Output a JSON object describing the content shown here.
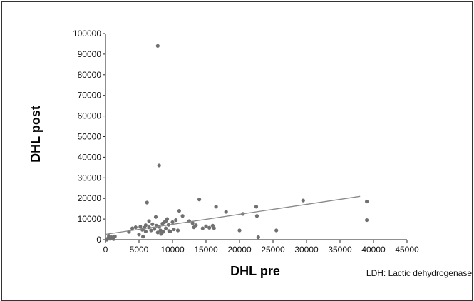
{
  "chart_data": {
    "type": "scatter",
    "xlabel": "DHL pre",
    "ylabel": "DHL post",
    "footnote": "LDH: Lactic dehydrogenase",
    "xlim": [
      0,
      45000
    ],
    "ylim": [
      0,
      100000
    ],
    "xticks": [
      0,
      5000,
      10000,
      15000,
      20000,
      25000,
      30000,
      35000,
      40000,
      45000
    ],
    "yticks": [
      0,
      10000,
      20000,
      30000,
      40000,
      50000,
      60000,
      70000,
      80000,
      90000,
      100000
    ],
    "grid": false,
    "point_color": "#707070",
    "line_color": "#888888",
    "trendline": {
      "x": [
        0,
        38000
      ],
      "y": [
        2600,
        21000
      ]
    },
    "points": [
      [
        200,
        0
      ],
      [
        300,
        300
      ],
      [
        400,
        800
      ],
      [
        500,
        1800
      ],
      [
        700,
        400
      ],
      [
        900,
        1200
      ],
      [
        1000,
        700
      ],
      [
        1200,
        300
      ],
      [
        1400,
        1600
      ],
      [
        3500,
        3800
      ],
      [
        4000,
        5500
      ],
      [
        4500,
        6000
      ],
      [
        5000,
        2500
      ],
      [
        5200,
        6300
      ],
      [
        5500,
        4800
      ],
      [
        5600,
        1500
      ],
      [
        5800,
        5800
      ],
      [
        6000,
        7000
      ],
      [
        6000,
        4000
      ],
      [
        6200,
        18000
      ],
      [
        6500,
        6000
      ],
      [
        6500,
        9000
      ],
      [
        6800,
        4500
      ],
      [
        7000,
        7500
      ],
      [
        7300,
        5200
      ],
      [
        7500,
        11000
      ],
      [
        7600,
        6800
      ],
      [
        7800,
        3500
      ],
      [
        7800,
        94000
      ],
      [
        8000,
        36000
      ],
      [
        8000,
        6200
      ],
      [
        8200,
        4500
      ],
      [
        8300,
        2800
      ],
      [
        8500,
        7800
      ],
      [
        8600,
        3800
      ],
      [
        8800,
        8500
      ],
      [
        9000,
        5500
      ],
      [
        9000,
        9000
      ],
      [
        9200,
        10000
      ],
      [
        9400,
        7200
      ],
      [
        9500,
        4200
      ],
      [
        9700,
        4000
      ],
      [
        10000,
        8500
      ],
      [
        10200,
        5000
      ],
      [
        10500,
        9500
      ],
      [
        10800,
        4500
      ],
      [
        11000,
        14000
      ],
      [
        11500,
        11500
      ],
      [
        12500,
        9000
      ],
      [
        13000,
        8000
      ],
      [
        13200,
        6000
      ],
      [
        13500,
        7000
      ],
      [
        14000,
        19500
      ],
      [
        14500,
        5500
      ],
      [
        15000,
        6500
      ],
      [
        15500,
        5800
      ],
      [
        16000,
        6800
      ],
      [
        16200,
        5600
      ],
      [
        16500,
        16000
      ],
      [
        18000,
        13500
      ],
      [
        20000,
        4500
      ],
      [
        20500,
        12500
      ],
      [
        22500,
        16000
      ],
      [
        22600,
        11500
      ],
      [
        22800,
        1200
      ],
      [
        25500,
        4500
      ],
      [
        29500,
        19000
      ],
      [
        39000,
        18500
      ],
      [
        39000,
        9500
      ]
    ]
  }
}
